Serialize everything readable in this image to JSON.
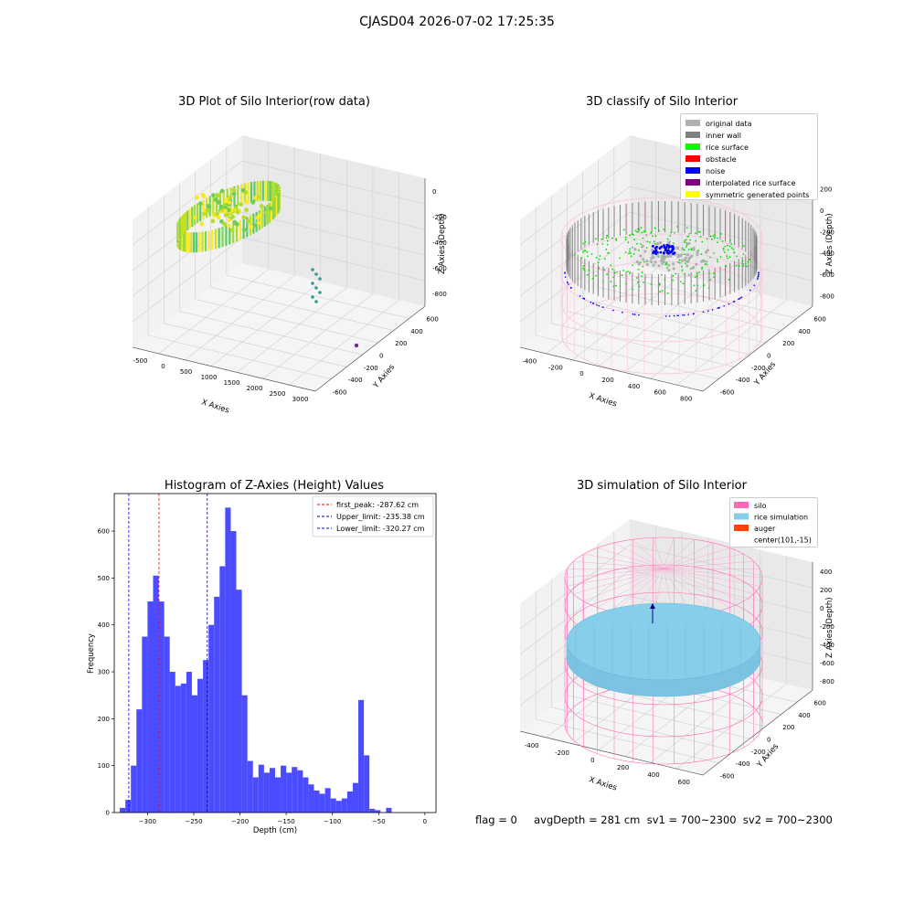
{
  "figure": {
    "suptitle": "CJASD04 2026-07-02 17:25:35"
  },
  "footer": {
    "text": "flag = 0     avgDepth = 281 cm  sv1 = 700~2300  sv2 = 700~2300"
  },
  "chart_data": [
    {
      "type": "scatter",
      "title": "3D Plot of Silo Interior(row data)",
      "xlabel": "X Axies",
      "ylabel": "Y Axies",
      "zlabel": "Z Axies (Depth)",
      "x_ticks": [
        "-500",
        "0",
        "500",
        "1000",
        "1500",
        "2000",
        "2500",
        "3000"
      ],
      "y_ticks": [
        "-600",
        "-400",
        "-200",
        "0",
        "200",
        "400",
        "600"
      ],
      "z_ticks": [
        "-800",
        "-600",
        "-400",
        "-200",
        "0"
      ]
    },
    {
      "type": "scatter",
      "title": "3D classify of Silo Interior",
      "xlabel": "X Axies",
      "ylabel": "Y Axies",
      "zlabel": "Z Axies (Depth)",
      "x_ticks": [
        "-400",
        "-200",
        "0",
        "200",
        "400",
        "600",
        "800"
      ],
      "y_ticks": [
        "-600",
        "-400",
        "-200",
        "0",
        "200",
        "400",
        "600"
      ],
      "z_ticks": [
        "-800",
        "-600",
        "-400",
        "-200",
        "0",
        "200"
      ],
      "legend": [
        {
          "label": "original data",
          "color": "#b0b0b0"
        },
        {
          "label": "inner wall",
          "color": "#808080"
        },
        {
          "label": "rice surface",
          "color": "#00ff00"
        },
        {
          "label": "obstacle",
          "color": "#ff0000"
        },
        {
          "label": "noise",
          "color": "#0000ff"
        },
        {
          "label": "interpolated rice surface",
          "color": "#800080"
        },
        {
          "label": "symmetric generated points",
          "color": "#ffff00"
        }
      ]
    },
    {
      "type": "bar",
      "title": "Histogram of Z-Axies (Height) Values",
      "xlabel": "Depth (cm)",
      "ylabel": "Frequency",
      "xlim": [
        -336,
        12
      ],
      "ylim": [
        0,
        680
      ],
      "x_ticks": [
        -300,
        -250,
        -200,
        -150,
        -100,
        -50,
        0
      ],
      "y_ticks": [
        0,
        100,
        200,
        300,
        400,
        500,
        600
      ],
      "bin_start": -330,
      "bin_width": 6,
      "values": [
        10,
        27,
        100,
        220,
        375,
        450,
        505,
        450,
        375,
        300,
        270,
        275,
        300,
        250,
        285,
        325,
        400,
        460,
        525,
        650,
        600,
        475,
        250,
        110,
        75,
        102,
        85,
        95,
        75,
        100,
        85,
        97,
        90,
        75,
        60,
        47,
        40,
        52,
        30,
        25,
        30,
        45,
        63,
        240,
        122,
        8,
        5,
        0,
        10
      ],
      "lines": [
        {
          "label": "first_peak: -287.62 cm",
          "x": -287.62,
          "color": "#ff0000"
        },
        {
          "label": "Upper_limit: -235.38 cm",
          "x": -235.38,
          "color": "#00008b"
        },
        {
          "label": "Lower_limit: -320.27 cm",
          "x": -320.27,
          "color": "#0000ff"
        }
      ]
    },
    {
      "type": "scatter",
      "title": "3D simulation of Silo Interior",
      "xlabel": "X Axies",
      "ylabel": "Y Axies",
      "zlabel": "Z Axies (Depth)",
      "x_ticks": [
        "-400",
        "-200",
        "0",
        "200",
        "400",
        "600"
      ],
      "y_ticks": [
        "-600",
        "-400",
        "-200",
        "0",
        "200",
        "400",
        "600"
      ],
      "z_ticks": [
        "-800",
        "-600",
        "-400",
        "-200",
        "0",
        "200",
        "400"
      ],
      "legend": [
        {
          "label": "silo",
          "color": "#ff69b4"
        },
        {
          "label": "rice simulation",
          "color": "#87ceeb"
        },
        {
          "label": "auger",
          "color": "#ff4500"
        },
        {
          "label": "center(101,-15)",
          "color": ""
        }
      ]
    }
  ]
}
